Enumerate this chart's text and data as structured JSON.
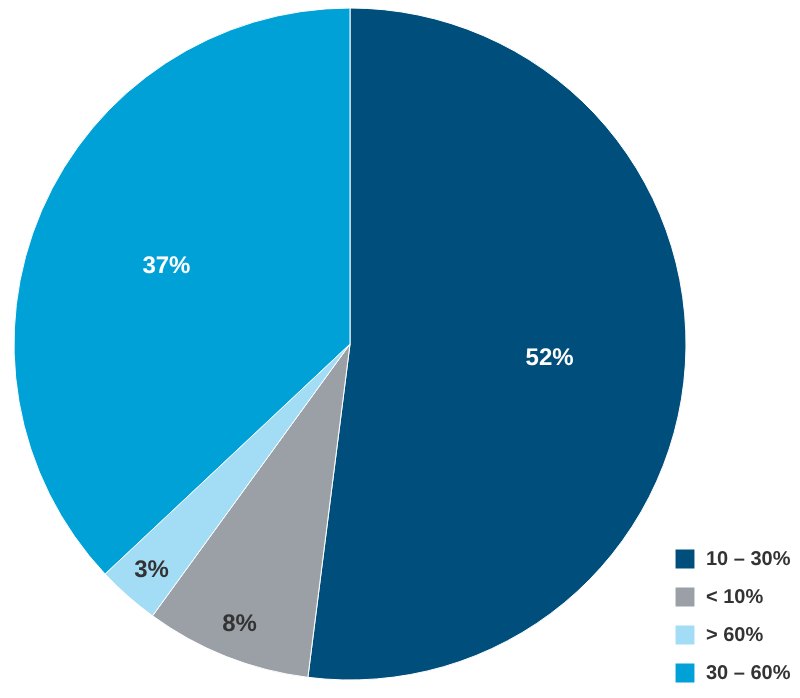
{
  "chart_data": {
    "type": "pie",
    "categories": [
      "10 – 30%",
      "< 10%",
      "> 60%",
      "30 – 60%"
    ],
    "values": [
      52,
      8,
      3,
      37
    ],
    "colors": [
      "#004e7c",
      "#9aa0a5",
      "#a3ddf5",
      "#00a1d7"
    ],
    "value_labels": [
      "52%",
      "8%",
      "3%",
      "37%"
    ],
    "legend": "bottom right"
  }
}
